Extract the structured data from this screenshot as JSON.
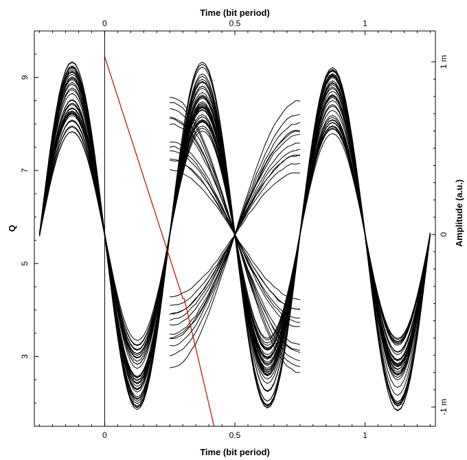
{
  "chart_data": {
    "type": "line",
    "title": "",
    "x_axis": {
      "label": "Time (bit period)",
      "range": [
        -0.27,
        1.27
      ],
      "ticks": [
        0,
        0.5,
        1
      ],
      "tick_labels": [
        "0",
        "0.5",
        "1"
      ]
    },
    "x_axis_top": {
      "label": "Time (bit period)",
      "ticks": [
        0,
        0.5,
        1
      ],
      "tick_labels": [
        "0",
        "0.5",
        "1"
      ]
    },
    "y_axis_left": {
      "label": "Q",
      "range": [
        1.5,
        10.0
      ],
      "ticks": [
        3,
        5,
        7,
        9
      ],
      "tick_labels": [
        "3",
        "5",
        "7",
        "9"
      ]
    },
    "y_axis_right": {
      "label": "Amplitude (a.u.)",
      "range": [
        -1.0,
        1.0
      ],
      "ticks": [
        -1,
        0,
        1
      ],
      "tick_labels": [
        "-1 m",
        "0",
        "1 m"
      ]
    },
    "grid": false,
    "series": [
      {
        "kind": "eye_diagram",
        "color": "#000000",
        "axis": "right",
        "trace_count": 40,
        "crossings_x": [
          -0.25,
          0,
          0.25,
          0.5,
          0.75,
          1.0,
          1.25
        ],
        "peak_x": [
          -0.125,
          0.125,
          0.375,
          0.625,
          0.875,
          1.125
        ],
        "upper_level_range": [
          0.58,
          1.0
        ],
        "lower_level_range": [
          -1.02,
          -0.6
        ]
      },
      {
        "kind": "q_factor",
        "color": "#c00000",
        "axis": "left",
        "x": [
          0.0,
          0.3,
          0.305,
          0.42
        ],
        "y": [
          9.45,
          4.25,
          4.25,
          1.5
        ]
      }
    ]
  }
}
